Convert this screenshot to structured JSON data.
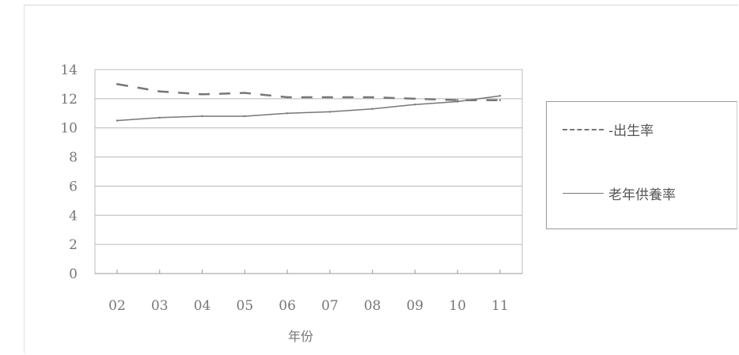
{
  "chart_data": {
    "type": "line",
    "x": [
      "02",
      "03",
      "04",
      "05",
      "06",
      "07",
      "08",
      "09",
      "10",
      "11"
    ],
    "xlabel": "年份",
    "ylabel": "",
    "ylim": [
      0,
      14
    ],
    "yticks": [
      0,
      2,
      4,
      6,
      8,
      10,
      12,
      14
    ],
    "grid": true,
    "legend_position": "right",
    "series": [
      {
        "name": "-出生率",
        "style": "dashed",
        "values": [
          13.0,
          12.5,
          12.3,
          12.4,
          12.1,
          12.1,
          12.1,
          12.0,
          11.9,
          11.9
        ]
      },
      {
        "name": "老年供養率",
        "style": "solid",
        "values": [
          10.5,
          10.7,
          10.8,
          10.8,
          11.0,
          11.1,
          11.3,
          11.6,
          11.8,
          12.2
        ]
      }
    ],
    "colors": {
      "line": "#777777",
      "grid": "#b8b8b8",
      "axis": "#999999"
    }
  }
}
